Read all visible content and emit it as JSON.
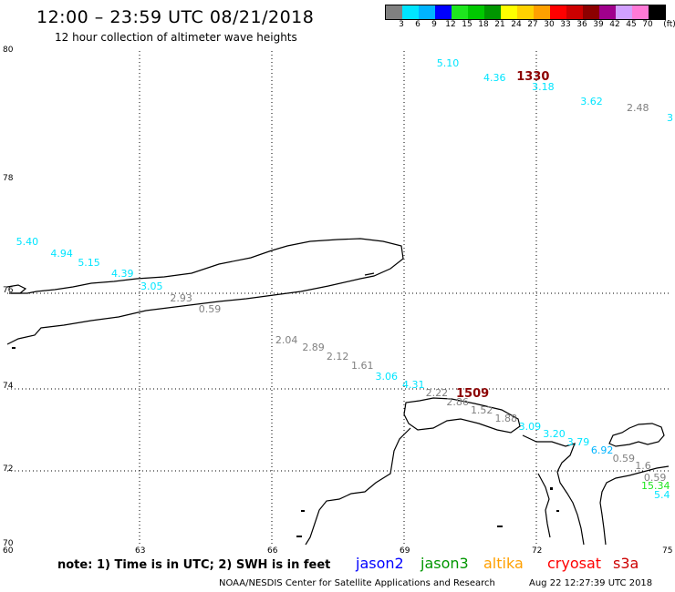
{
  "header": {
    "title": "12:00 – 23:59 UTC 08/21/2018",
    "subtitle": "12 hour collection of altimeter wave heights"
  },
  "color_scale": {
    "colors": [
      "#808080",
      "#00e5ff",
      "#00b4ff",
      "#0000ff",
      "#1ee61e",
      "#00c800",
      "#009600",
      "#ffff00",
      "#ffd200",
      "#ffa000",
      "#ff0000",
      "#cd0000",
      "#8c0000",
      "#a0008c",
      "#d2a0ff",
      "#ff7ad7",
      "#000000"
    ],
    "labels": [
      "3",
      "6",
      "9",
      "12",
      "15",
      "18",
      "21",
      "24",
      "27",
      "30",
      "33",
      "36",
      "39",
      "42",
      "45",
      "70",
      "(ft)"
    ]
  },
  "axes": {
    "lat_labels": [
      "80",
      "78",
      "76",
      "74",
      "72",
      "70"
    ],
    "lon_labels": [
      "60",
      "63",
      "66",
      "69",
      "72",
      "75"
    ]
  },
  "observations": [
    {
      "text": "5.10",
      "color": "#00e5ff",
      "lon": 69.74,
      "lat": 79.8
    },
    {
      "text": "4.36",
      "color": "#00e5ff",
      "lon": 70.8,
      "lat": 79.58
    },
    {
      "text": "1330",
      "color": "#8c0000",
      "lon": 71.55,
      "lat": 79.6,
      "big": true
    },
    {
      "text": "3.18",
      "color": "#00e5ff",
      "lon": 71.9,
      "lat": 79.43
    },
    {
      "text": "3.62",
      "color": "#00e5ff",
      "lon": 73.0,
      "lat": 79.21
    },
    {
      "text": "2.48",
      "color": "#808080",
      "lon": 74.05,
      "lat": 79.1
    },
    {
      "text": "5.40",
      "color": "#00e5ff",
      "lon": 60.2,
      "lat": 76.88
    },
    {
      "text": "4.94",
      "color": "#00e5ff",
      "lon": 60.98,
      "lat": 76.67
    },
    {
      "text": "5.15",
      "color": "#00e5ff",
      "lon": 61.6,
      "lat": 76.51
    },
    {
      "text": "4.39",
      "color": "#00e5ff",
      "lon": 62.36,
      "lat": 76.31
    },
    {
      "text": "3.05",
      "color": "#00e5ff",
      "lon": 63.02,
      "lat": 76.08
    },
    {
      "text": "2.93",
      "color": "#808080",
      "lon": 63.69,
      "lat": 75.84
    },
    {
      "text": "0.59",
      "color": "#808080",
      "lon": 64.34,
      "lat": 75.62
    },
    {
      "text": "2.04",
      "color": "#808080",
      "lon": 66.08,
      "lat": 74.98
    },
    {
      "text": "2.89",
      "color": "#808080",
      "lon": 66.69,
      "lat": 74.81
    },
    {
      "text": "2.12",
      "color": "#808080",
      "lon": 67.24,
      "lat": 74.63
    },
    {
      "text": "1.61",
      "color": "#808080",
      "lon": 67.8,
      "lat": 74.44
    },
    {
      "text": "3.06",
      "color": "#00e5ff",
      "lon": 68.35,
      "lat": 74.21
    },
    {
      "text": "4.31",
      "color": "#00e5ff",
      "lon": 68.96,
      "lat": 74.03
    },
    {
      "text": "2.22",
      "color": "#808080",
      "lon": 69.49,
      "lat": 73.85
    },
    {
      "text": "1509",
      "color": "#8c0000",
      "lon": 70.18,
      "lat": 73.85,
      "big": true
    },
    {
      "text": "2.86",
      "color": "#808080",
      "lon": 69.96,
      "lat": 73.63
    },
    {
      "text": "1.52",
      "color": "#808080",
      "lon": 70.51,
      "lat": 73.43
    },
    {
      "text": "1.88",
      "color": "#808080",
      "lon": 71.06,
      "lat": 73.23
    },
    {
      "text": "3.09",
      "color": "#00e5ff",
      "lon": 71.6,
      "lat": 73.03
    },
    {
      "text": "3.20",
      "color": "#00e5ff",
      "lon": 72.15,
      "lat": 72.85
    },
    {
      "text": "3.79",
      "color": "#00e5ff",
      "lon": 72.7,
      "lat": 72.65
    },
    {
      "text": "6.92",
      "color": "#00b4ff",
      "lon": 73.24,
      "lat": 72.46
    },
    {
      "text": "0.59",
      "color": "#808080",
      "lon": 73.73,
      "lat": 72.27
    },
    {
      "text": "1.6",
      "color": "#808080",
      "lon": 74.24,
      "lat": 72.09
    },
    {
      "text": "0.59",
      "color": "#808080",
      "lon": 74.44,
      "lat": 71.78
    },
    {
      "text": "15.34",
      "color": "#1ee61e",
      "lon": 74.46,
      "lat": 71.56
    },
    {
      "text": "5.4",
      "color": "#00e5ff",
      "lon": 74.94,
      "lat": 71.32
    },
    {
      "text": "3",
      "color": "#00e5ff",
      "lon": 75.15,
      "lat": 78.95
    }
  ],
  "note": "note:  1) Time is in UTC;  2) SWH is in feet",
  "satellites": [
    {
      "name": "jason2",
      "color": "#0000ff"
    },
    {
      "name": "jason3",
      "color": "#009600"
    },
    {
      "name": "altika",
      "color": "#ffa000"
    },
    {
      "name": "cryosat",
      "color": "#ff0000"
    },
    {
      "name": "s3a",
      "color": "#cd0000"
    }
  ],
  "footer": {
    "credit": "NOAA/NESDIS Center for Satellite Applications and Research",
    "timestamp": "Aug 22 12:27:39 UTC 2018"
  }
}
